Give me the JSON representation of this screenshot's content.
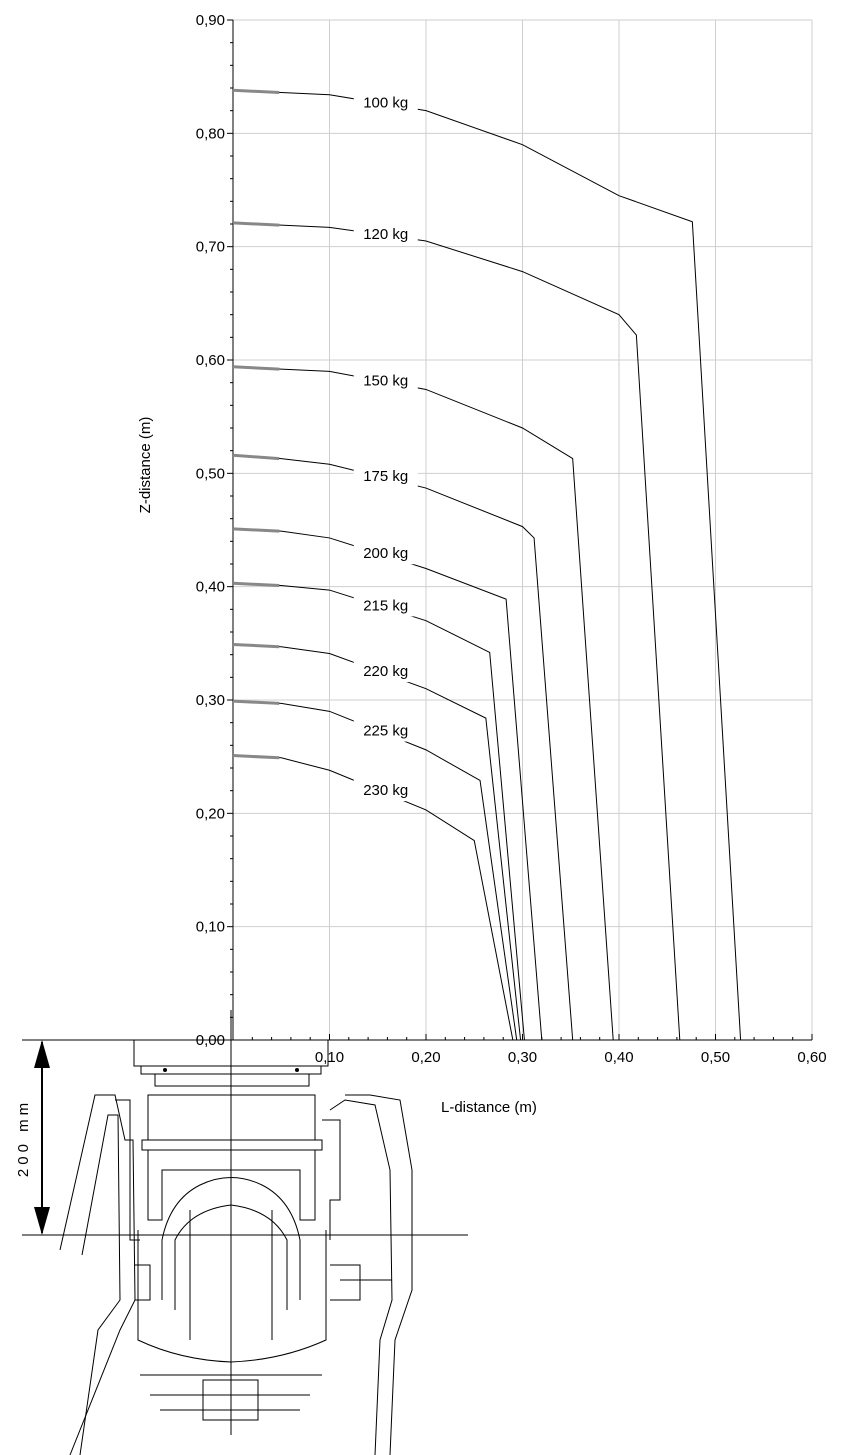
{
  "chart_data": {
    "type": "line",
    "title": "",
    "xlabel": "L-distance (m)",
    "ylabel": "Z-distance (m)",
    "xlim": [
      0,
      0.6
    ],
    "ylim": [
      0,
      0.9
    ],
    "xticks": [
      "0,00",
      "0,10",
      "0,20",
      "0,30",
      "0,40",
      "0,50",
      "0,60"
    ],
    "yticks": [
      "0,00",
      "0,10",
      "0,20",
      "0,30",
      "0,40",
      "0,50",
      "0,60",
      "0,70",
      "0,80",
      "0,90"
    ],
    "grid": true,
    "series": [
      {
        "name": "100 kg",
        "points": [
          [
            0,
            0.838
          ],
          [
            0.05,
            0.836
          ],
          [
            0.1,
            0.834
          ],
          [
            0.2,
            0.82
          ],
          [
            0.3,
            0.79
          ],
          [
            0.4,
            0.745
          ],
          [
            0.476,
            0.722
          ],
          [
            0.526,
            0
          ]
        ]
      },
      {
        "name": "120 kg",
        "points": [
          [
            0,
            0.721
          ],
          [
            0.05,
            0.719
          ],
          [
            0.1,
            0.717
          ],
          [
            0.2,
            0.705
          ],
          [
            0.3,
            0.678
          ],
          [
            0.4,
            0.64
          ],
          [
            0.418,
            0.622
          ],
          [
            0.463,
            0
          ]
        ]
      },
      {
        "name": "150 kg",
        "points": [
          [
            0,
            0.594
          ],
          [
            0.05,
            0.592
          ],
          [
            0.1,
            0.59
          ],
          [
            0.2,
            0.574
          ],
          [
            0.3,
            0.54
          ],
          [
            0.352,
            0.513
          ],
          [
            0.394,
            0
          ]
        ]
      },
      {
        "name": "175 kg",
        "points": [
          [
            0,
            0.516
          ],
          [
            0.05,
            0.513
          ],
          [
            0.1,
            0.508
          ],
          [
            0.2,
            0.487
          ],
          [
            0.3,
            0.453
          ],
          [
            0.312,
            0.443
          ],
          [
            0.352,
            0
          ]
        ]
      },
      {
        "name": "200 kg",
        "points": [
          [
            0,
            0.451
          ],
          [
            0.05,
            0.449
          ],
          [
            0.1,
            0.443
          ],
          [
            0.2,
            0.416
          ],
          [
            0.283,
            0.389
          ],
          [
            0.32,
            0
          ]
        ]
      },
      {
        "name": "215 kg",
        "points": [
          [
            0,
            0.403
          ],
          [
            0.05,
            0.401
          ],
          [
            0.1,
            0.397
          ],
          [
            0.2,
            0.37
          ],
          [
            0.266,
            0.342
          ],
          [
            0.302,
            0
          ]
        ]
      },
      {
        "name": "220 kg",
        "points": [
          [
            0,
            0.349
          ],
          [
            0.05,
            0.347
          ],
          [
            0.1,
            0.341
          ],
          [
            0.2,
            0.31
          ],
          [
            0.262,
            0.284
          ],
          [
            0.298,
            0
          ]
        ]
      },
      {
        "name": "225 kg",
        "points": [
          [
            0,
            0.299
          ],
          [
            0.05,
            0.297
          ],
          [
            0.1,
            0.29
          ],
          [
            0.2,
            0.256
          ],
          [
            0.256,
            0.229
          ],
          [
            0.294,
            0
          ]
        ]
      },
      {
        "name": "230 kg",
        "points": [
          [
            0,
            0.251
          ],
          [
            0.05,
            0.249
          ],
          [
            0.1,
            0.238
          ],
          [
            0.2,
            0.203
          ],
          [
            0.25,
            0.176
          ],
          [
            0.29,
            0
          ]
        ]
      }
    ]
  },
  "dimension": {
    "label": "200 mm"
  }
}
